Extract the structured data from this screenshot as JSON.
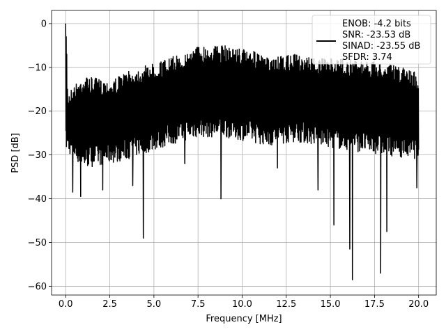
{
  "chart_data": {
    "type": "line",
    "xlabel": "Frequency [MHz]",
    "ylabel": "PSD [dB]",
    "xlim": [
      -0.8,
      21.0
    ],
    "ylim": [
      -62,
      3
    ],
    "xticks": [
      0.0,
      2.5,
      5.0,
      7.5,
      10.0,
      12.5,
      15.0,
      17.5,
      20.0
    ],
    "xtick_labels": [
      "0.0",
      "2.5",
      "5.0",
      "7.5",
      "10.0",
      "12.5",
      "15.0",
      "17.5",
      "20.0"
    ],
    "yticks": [
      0,
      -10,
      -20,
      -30,
      -40,
      -50,
      -60
    ],
    "ytick_labels": [
      "0",
      "−10",
      "−20",
      "−30",
      "−40",
      "−50",
      "−60"
    ],
    "grid": true,
    "legend_position": "top-right",
    "legend_lines": [
      "ENOB: -4.2 bits",
      "SNR: -23.53 dB",
      "SINAD: -23.55 dB",
      "SFDR: 3.74"
    ],
    "series": [
      {
        "color": "#000000",
        "x_range": [
          0.0,
          20.0
        ],
        "num_points": 1400,
        "seed": 7,
        "envelope": [
          [
            0.0,
            -16,
            -29
          ],
          [
            1.0,
            -12,
            -33
          ],
          [
            2.5,
            -13,
            -32
          ],
          [
            3.5,
            -11,
            -31
          ],
          [
            5.0,
            -9,
            -29
          ],
          [
            6.5,
            -7,
            -27
          ],
          [
            7.5,
            -5,
            -26
          ],
          [
            9.0,
            -5,
            -26
          ],
          [
            10.5,
            -6,
            -27
          ],
          [
            11.5,
            -8,
            -28
          ],
          [
            13.0,
            -7,
            -27
          ],
          [
            14.5,
            -8,
            -28
          ],
          [
            16.0,
            -8,
            -29
          ],
          [
            18.0,
            -9,
            -30
          ],
          [
            20.0,
            -11,
            -31
          ]
        ],
        "spikes": [
          [
            0.0,
            0
          ],
          [
            0.03,
            -3
          ],
          [
            0.06,
            -7
          ],
          [
            0.1,
            -15
          ],
          [
            4.4,
            -49
          ],
          [
            8.8,
            -40
          ],
          [
            15.2,
            -46
          ],
          [
            16.1,
            -51.5
          ],
          [
            16.25,
            -58.5
          ],
          [
            17.85,
            -57
          ],
          [
            18.2,
            -47.5
          ],
          [
            14.3,
            -38
          ],
          [
            0.85,
            -39.5
          ],
          [
            6.75,
            -32
          ],
          [
            12.0,
            -33
          ],
          [
            19.9,
            -37.5
          ],
          [
            0.4,
            -38.5
          ],
          [
            2.1,
            -38
          ],
          [
            3.8,
            -37
          ]
        ]
      }
    ]
  }
}
